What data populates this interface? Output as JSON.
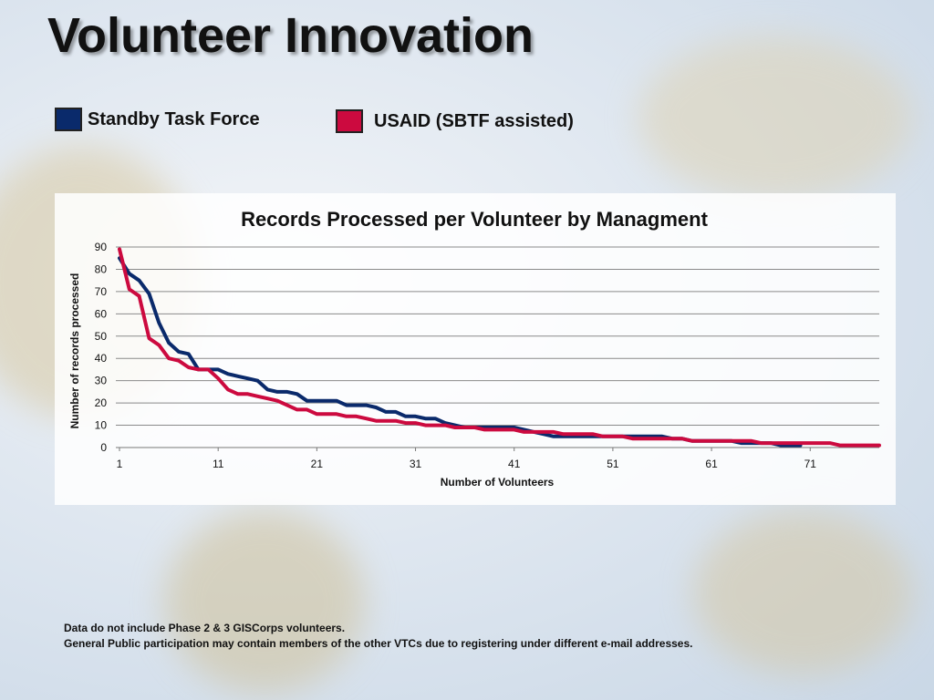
{
  "slide": {
    "title": "Volunteer Innovation",
    "footnotes": [
      "Data do not include Phase 2 & 3 GISCorps volunteers.",
      "General Public participation may contain members of the other VTCs due to registering under different e-mail addresses."
    ]
  },
  "legend": [
    {
      "label": "Standby Task Force",
      "color": "#0a2a6b"
    },
    {
      "label": "USAID (SBTF assisted)",
      "color": "#cc0a3f"
    }
  ],
  "chart_data": {
    "type": "line",
    "title": "Records Processed per Volunteer by Managment",
    "xlabel": "Number of Volunteers",
    "ylabel": "Number of records processed",
    "ylim": [
      0,
      90
    ],
    "yticks": [
      0,
      10,
      20,
      30,
      40,
      50,
      60,
      70,
      80,
      90
    ],
    "xticks": [
      1,
      11,
      21,
      31,
      41,
      51,
      61,
      71
    ],
    "xlim": [
      1,
      78
    ],
    "grid": true,
    "series": [
      {
        "name": "Standby Task Force",
        "color": "#0a2a6b",
        "values": [
          85,
          78,
          75,
          69,
          56,
          47,
          43,
          42,
          35,
          35,
          35,
          33,
          32,
          31,
          30,
          26,
          25,
          25,
          24,
          21,
          21,
          21,
          21,
          19,
          19,
          19,
          18,
          16,
          16,
          14,
          14,
          13,
          13,
          11,
          10,
          9,
          9,
          9,
          9,
          9,
          9,
          8,
          7,
          6,
          5,
          5,
          5,
          5,
          5,
          5,
          5,
          5,
          5,
          5,
          5,
          5,
          4,
          4,
          3,
          3,
          3,
          3,
          3,
          2,
          2,
          2,
          2,
          1,
          1,
          1
        ]
      },
      {
        "name": "USAID (SBTF assisted)",
        "color": "#cc0a3f",
        "values": [
          89,
          71,
          68,
          49,
          46,
          40,
          39,
          36,
          35,
          35,
          31,
          26,
          24,
          24,
          23,
          22,
          21,
          19,
          17,
          17,
          15,
          15,
          15,
          14,
          14,
          13,
          12,
          12,
          12,
          11,
          11,
          10,
          10,
          10,
          9,
          9,
          9,
          8,
          8,
          8,
          8,
          7,
          7,
          7,
          7,
          6,
          6,
          6,
          6,
          5,
          5,
          5,
          4,
          4,
          4,
          4,
          4,
          4,
          3,
          3,
          3,
          3,
          3,
          3,
          3,
          2,
          2,
          2,
          2,
          2,
          2,
          2,
          2,
          1,
          1,
          1,
          1,
          1
        ]
      }
    ]
  }
}
